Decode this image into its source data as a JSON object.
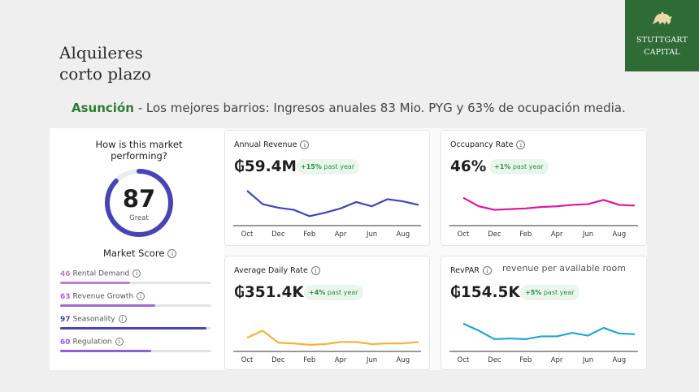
{
  "header": {
    "title_line1": "Alquileres",
    "title_line2": "corto plazo",
    "subtitle_city": "Asunción",
    "subtitle_rest": " - Los mejores barrios: Ingresos anuales 83 Mio. PYG y 63% de ocupación media."
  },
  "logo": {
    "line1": "STUTTGART",
    "line2": "CAPITAL",
    "icon": "lion-icon",
    "bg_color": "#2e6b35"
  },
  "score": {
    "question_line1": "How is this market",
    "question_line2": "performing?",
    "value": 87,
    "label": "Great",
    "market_score_label": "Market Score",
    "metrics": [
      {
        "value": 46,
        "label": "Rental Demand",
        "color": "#c07ed3"
      },
      {
        "value": 63,
        "label": "Revenue Growth",
        "color": "#9d6ad6"
      },
      {
        "value": 97,
        "label": "Seasonality",
        "color": "#4a43b5"
      },
      {
        "value": 60,
        "label": "Regulation",
        "color": "#8b63d8"
      }
    ]
  },
  "cards": [
    {
      "title": "Annual Revenue",
      "value": "₲59.4M",
      "change": "+15%",
      "change_label": "past year",
      "color": "#4046b8",
      "series": [
        72,
        53,
        48,
        45,
        36,
        41,
        47,
        56,
        50,
        60,
        57,
        52
      ]
    },
    {
      "title": "Occupancy Rate",
      "value": "46%",
      "change": "+1%",
      "change_label": "past year",
      "color": "#e0139e",
      "series": [
        62,
        50,
        45,
        46,
        47,
        49,
        50,
        52,
        53,
        59,
        52,
        51
      ]
    },
    {
      "title": "Average Daily Rate",
      "value": "₲351.4K",
      "change": "+4%",
      "change_label": "past year",
      "color": "#f0b63b",
      "series": [
        42,
        52,
        35,
        34,
        32,
        33,
        36,
        36,
        33,
        34,
        34,
        36
      ]
    },
    {
      "title": "RevPAR",
      "value": "₲154.5K",
      "change": "+5%",
      "change_label": "past year",
      "color": "#23a7d0",
      "note": "revenue per available room",
      "series": [
        62,
        52,
        40,
        41,
        40,
        44,
        44,
        49,
        45,
        56,
        48,
        47
      ]
    }
  ],
  "x_labels": [
    "Oct",
    "Dec",
    "Feb",
    "Apr",
    "Jun",
    "Aug"
  ]
}
